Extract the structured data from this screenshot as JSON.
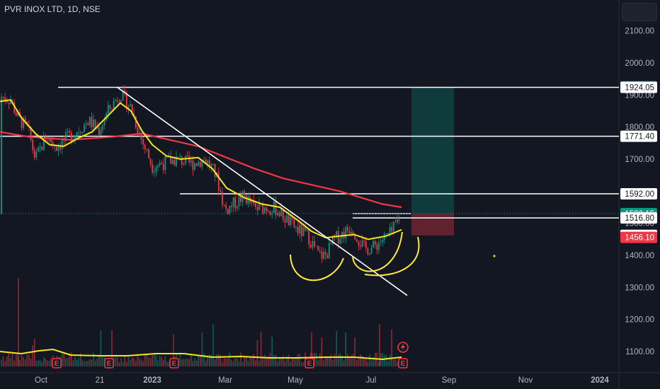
{
  "header": {
    "symbol_title": "PVR INOX LTD, 1D, NSE"
  },
  "chart_data": {
    "type": "candlestick",
    "title": "PVR INOX LTD, 1D, NSE",
    "x_ticks": [
      "Oct",
      "21",
      "2023",
      "Mar",
      "May",
      "Jul",
      "Sep",
      "Nov",
      "2024"
    ],
    "y_ticks": [
      "2100.00",
      "2000.00",
      "1900.00",
      "1800.00",
      "1700.00",
      "1600.00",
      "1500.00",
      "1400.00",
      "1300.00",
      "1200.00",
      "1100.00"
    ],
    "ylim": [
      1035,
      2210
    ],
    "horizontal_levels": [
      {
        "value": 1924.05,
        "label": "1924.05"
      },
      {
        "value": 1771.4,
        "label": "1771.40"
      },
      {
        "value": 1592.0,
        "label": "1592.00"
      },
      {
        "value": 1516.8,
        "label": "1516.80"
      }
    ],
    "price_badges": [
      {
        "value": 1925.5,
        "label": "1925.50",
        "color": "#089981"
      },
      {
        "value": 1530.15,
        "label": "1530.15",
        "color": "#089981"
      },
      {
        "value": 1517.5,
        "label": "1517.50",
        "color": "#787b86"
      },
      {
        "value": 1462.35,
        "label": "1462.35",
        "color": "#ffffff"
      },
      {
        "value": 1456.1,
        "label": "1456.10",
        "color": "#f23645"
      }
    ],
    "current_price": 1530.15,
    "position": {
      "entry": 1530.15,
      "target": 1925.5,
      "stop": 1462.35
    },
    "trendline": {
      "from": 1925,
      "to": 1275
    },
    "moving_averages": [
      {
        "color": "#f23645",
        "kind": "long"
      },
      {
        "color": "#f5e61e",
        "kind": "short"
      }
    ],
    "earnings_markers": [
      "E",
      "E",
      "E",
      "E",
      "E",
      "E"
    ],
    "colors": {
      "up": "#089981",
      "down": "#f23645",
      "drawing": "#ffeb3b",
      "line": "#ffffff"
    }
  }
}
